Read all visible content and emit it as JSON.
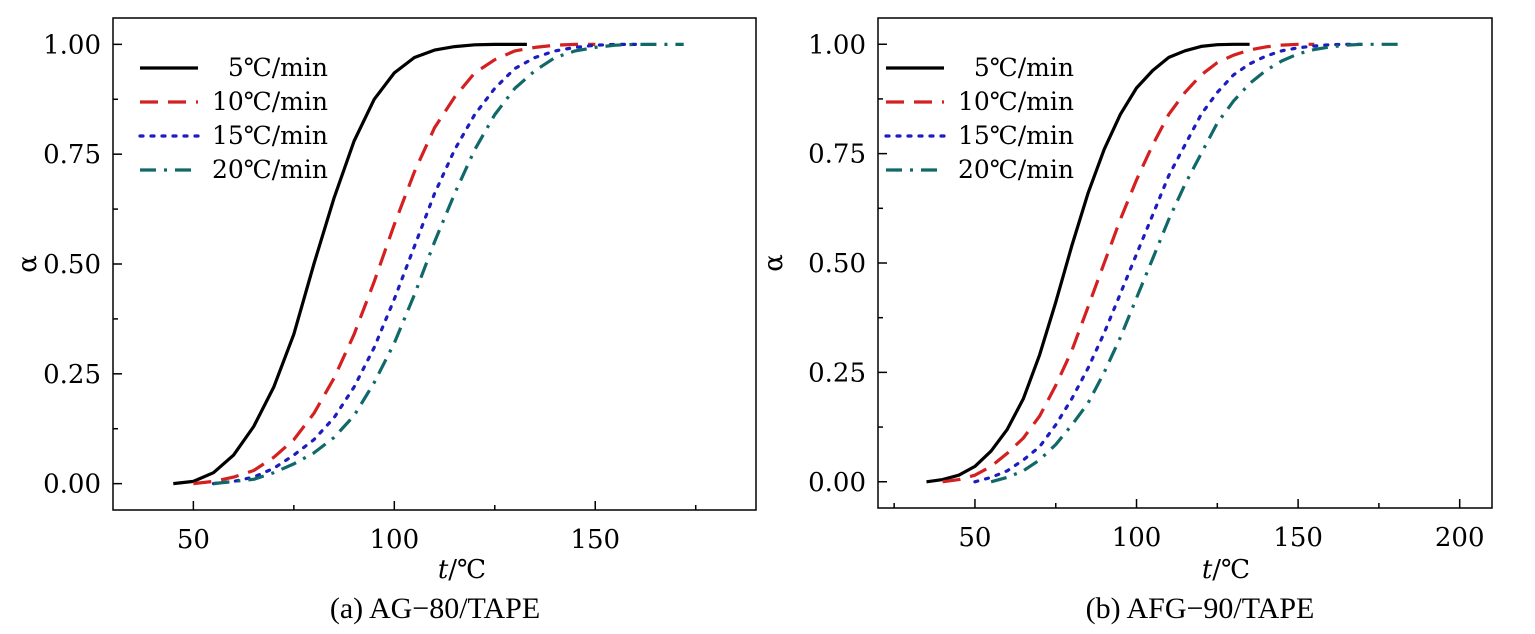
{
  "chart_data": [
    {
      "type": "line",
      "caption": "(a)   AG−80/TAPE",
      "xlabel_italic": "t",
      "xlabel_unit": "/℃",
      "ylabel": "α",
      "xlim": [
        30,
        190
      ],
      "ylim": [
        -0.06,
        1.06
      ],
      "xticks": [
        50,
        100,
        150
      ],
      "xtick_labels": [
        "50",
        "100",
        "150"
      ],
      "yticks": [
        0,
        0.25,
        0.5,
        0.75,
        1.0
      ],
      "ytick_labels": [
        "0.00",
        "0.25",
        "0.50",
        "0.75",
        "1.00"
      ],
      "grid": false,
      "legend_position": "top-left",
      "series": [
        {
          "name": "5℃/min",
          "color": "#000000",
          "dash": "solid",
          "x": [
            45,
            50,
            55,
            60,
            65,
            70,
            75,
            80,
            85,
            90,
            95,
            100,
            105,
            110,
            115,
            120,
            125,
            130,
            133
          ],
          "y": [
            0.0,
            0.005,
            0.025,
            0.065,
            0.13,
            0.22,
            0.34,
            0.5,
            0.65,
            0.78,
            0.875,
            0.935,
            0.97,
            0.987,
            0.995,
            0.999,
            1.0,
            1.0,
            1.0
          ]
        },
        {
          "name": "10℃/min",
          "color": "#d42020",
          "dash": "dash",
          "x": [
            50,
            55,
            60,
            65,
            70,
            75,
            80,
            85,
            90,
            95,
            100,
            105,
            110,
            115,
            120,
            125,
            130,
            135,
            140,
            145,
            150
          ],
          "y": [
            0.0,
            0.005,
            0.015,
            0.03,
            0.06,
            0.1,
            0.16,
            0.24,
            0.34,
            0.46,
            0.59,
            0.71,
            0.81,
            0.88,
            0.935,
            0.965,
            0.985,
            0.993,
            0.998,
            1.0,
            1.0
          ]
        },
        {
          "name": "15℃/min",
          "color": "#1c1cc0",
          "dash": "dot",
          "x": [
            55,
            60,
            65,
            70,
            75,
            80,
            85,
            90,
            95,
            100,
            105,
            110,
            115,
            120,
            125,
            130,
            135,
            140,
            145,
            150,
            155,
            160
          ],
          "y": [
            0.0,
            0.005,
            0.015,
            0.035,
            0.065,
            0.1,
            0.15,
            0.22,
            0.31,
            0.42,
            0.54,
            0.66,
            0.76,
            0.84,
            0.9,
            0.945,
            0.97,
            0.985,
            0.993,
            0.998,
            1.0,
            1.0
          ]
        },
        {
          "name": "20℃/min",
          "color": "#106868",
          "dash": "dashdot",
          "x": [
            55,
            60,
            65,
            70,
            75,
            80,
            85,
            90,
            95,
            100,
            105,
            110,
            115,
            120,
            125,
            130,
            135,
            140,
            145,
            150,
            155,
            160,
            165,
            172
          ],
          "y": [
            0.0,
            0.005,
            0.01,
            0.025,
            0.045,
            0.07,
            0.105,
            0.155,
            0.23,
            0.32,
            0.43,
            0.55,
            0.66,
            0.76,
            0.84,
            0.9,
            0.94,
            0.97,
            0.985,
            0.993,
            0.998,
            1.0,
            1.0,
            1.0
          ]
        }
      ]
    },
    {
      "type": "line",
      "caption": "(b)   AFG−90/TAPE",
      "xlabel_italic": "t",
      "xlabel_unit": "/℃",
      "ylabel": "α",
      "xlim": [
        20,
        210
      ],
      "ylim": [
        -0.06,
        1.06
      ],
      "xticks": [
        50,
        100,
        150,
        200
      ],
      "xtick_labels": [
        "50",
        "100",
        "150",
        "200"
      ],
      "yticks": [
        0,
        0.25,
        0.5,
        0.75,
        1.0
      ],
      "ytick_labels": [
        "0.00",
        "0.25",
        "0.50",
        "0.75",
        "1.00"
      ],
      "grid": false,
      "legend_position": "top-left",
      "series": [
        {
          "name": "5℃/min",
          "color": "#000000",
          "dash": "solid",
          "x": [
            35,
            40,
            45,
            50,
            55,
            60,
            65,
            70,
            75,
            80,
            85,
            90,
            95,
            100,
            105,
            110,
            115,
            120,
            125,
            130,
            135
          ],
          "y": [
            0.0,
            0.005,
            0.015,
            0.035,
            0.07,
            0.12,
            0.19,
            0.29,
            0.41,
            0.54,
            0.66,
            0.76,
            0.84,
            0.9,
            0.94,
            0.97,
            0.985,
            0.995,
            0.999,
            1.0,
            1.0
          ]
        },
        {
          "name": "10℃/min",
          "color": "#d42020",
          "dash": "dash",
          "x": [
            40,
            45,
            50,
            55,
            60,
            65,
            70,
            75,
            80,
            85,
            90,
            95,
            100,
            105,
            110,
            115,
            120,
            125,
            130,
            135,
            140,
            145,
            150,
            155
          ],
          "y": [
            0.0,
            0.005,
            0.015,
            0.035,
            0.065,
            0.1,
            0.15,
            0.22,
            0.3,
            0.4,
            0.5,
            0.6,
            0.69,
            0.77,
            0.84,
            0.89,
            0.93,
            0.958,
            0.975,
            0.987,
            0.994,
            0.998,
            1.0,
            1.0
          ]
        },
        {
          "name": "15℃/min",
          "color": "#1c1cc0",
          "dash": "dot",
          "x": [
            50,
            55,
            60,
            65,
            70,
            75,
            80,
            85,
            90,
            95,
            100,
            105,
            110,
            115,
            120,
            125,
            130,
            135,
            140,
            145,
            150,
            155,
            160,
            165,
            170
          ],
          "y": [
            0.0,
            0.01,
            0.025,
            0.05,
            0.08,
            0.13,
            0.19,
            0.26,
            0.34,
            0.43,
            0.52,
            0.61,
            0.7,
            0.77,
            0.84,
            0.89,
            0.93,
            0.955,
            0.973,
            0.985,
            0.992,
            0.996,
            0.999,
            1.0,
            1.0
          ]
        },
        {
          "name": "20℃/min",
          "color": "#106868",
          "dash": "dashdot",
          "x": [
            55,
            60,
            65,
            70,
            75,
            80,
            85,
            90,
            95,
            100,
            105,
            110,
            115,
            120,
            125,
            130,
            135,
            140,
            145,
            150,
            155,
            160,
            165,
            170,
            175,
            183
          ],
          "y": [
            0.0,
            0.01,
            0.025,
            0.05,
            0.085,
            0.13,
            0.18,
            0.25,
            0.33,
            0.42,
            0.51,
            0.6,
            0.68,
            0.75,
            0.82,
            0.87,
            0.91,
            0.94,
            0.962,
            0.978,
            0.988,
            0.994,
            0.998,
            1.0,
            1.0,
            1.0
          ]
        }
      ]
    }
  ]
}
